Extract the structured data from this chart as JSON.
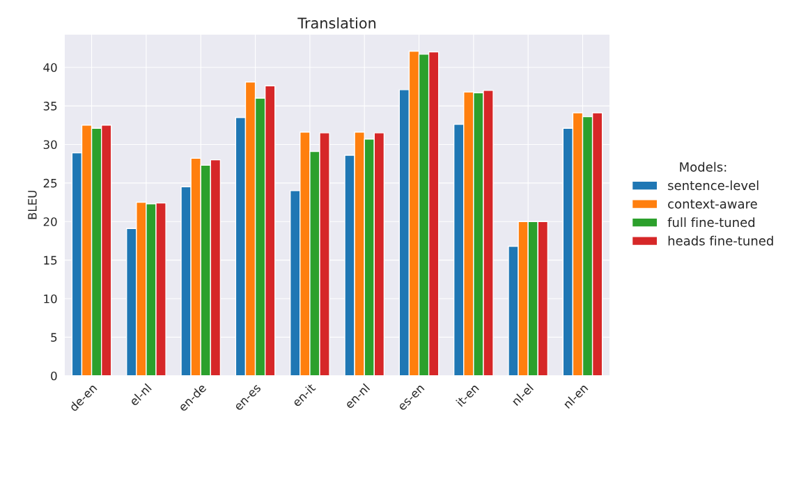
{
  "chart_data": {
    "type": "bar",
    "title": "Translation",
    "ylabel": "BLEU",
    "legend_title": "Models:",
    "categories": [
      "de-en",
      "el-nl",
      "en-de",
      "en-es",
      "en-it",
      "en-nl",
      "es-en",
      "it-en",
      "nl-el",
      "nl-en"
    ],
    "series": [
      {
        "name": "sentence-level",
        "color": "#1f77b4",
        "values": [
          28.9,
          19.1,
          24.5,
          33.5,
          24.0,
          28.6,
          37.1,
          32.6,
          16.8,
          32.1
        ]
      },
      {
        "name": "context-aware",
        "color": "#ff7f0e",
        "values": [
          32.5,
          22.5,
          28.2,
          38.1,
          31.6,
          31.6,
          42.1,
          36.8,
          20.0,
          34.1
        ]
      },
      {
        "name": "full fine-tuned",
        "color": "#2ca02c",
        "values": [
          32.1,
          22.3,
          27.3,
          36.0,
          29.1,
          30.7,
          41.7,
          36.7,
          20.0,
          33.6
        ]
      },
      {
        "name": "heads fine-tuned",
        "color": "#d62728",
        "values": [
          32.5,
          22.4,
          28.0,
          37.6,
          31.5,
          31.5,
          42.0,
          37.0,
          20.0,
          34.1
        ]
      }
    ],
    "ylim": [
      0,
      44.3
    ],
    "yticks": [
      0,
      5,
      10,
      15,
      20,
      25,
      30,
      35,
      40
    ],
    "grid": true,
    "legend": "right"
  }
}
